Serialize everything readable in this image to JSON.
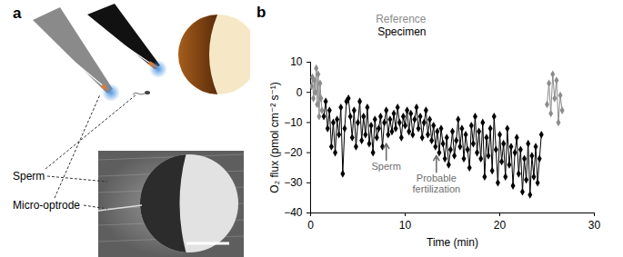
{
  "panel_a": {
    "label": "a",
    "sperm_label": "Sperm",
    "optrode_label": "Micro-optrode"
  },
  "chart_data": {
    "type": "line",
    "title": "b",
    "x_label": "Time (min)",
    "y_label": "O₂ flux (pmol cm⁻² s⁻¹)",
    "xlim": [
      0,
      30
    ],
    "xticks": [
      0,
      10,
      20,
      30
    ],
    "ylim": [
      -40,
      10
    ],
    "yticks": [
      -40,
      -30,
      -20,
      -10,
      0,
      10
    ],
    "legend": "top",
    "marker": "diamond",
    "series": [
      {
        "name": "Reference",
        "color": "#8c8c8c",
        "x": [
          0.1,
          0.2,
          0.3,
          0.4,
          0.5,
          0.6,
          0.7,
          0.8,
          0.9,
          1.0,
          1.1,
          1.2,
          1.3,
          25.0,
          25.2,
          25.4,
          25.6,
          25.8,
          26.0,
          26.2,
          26.4,
          26.6
        ],
        "values": [
          2,
          5,
          -2,
          4,
          0,
          8,
          -4,
          6,
          -8,
          3,
          -2,
          -6,
          null,
          -4,
          3,
          -7,
          6,
          -2,
          4,
          -10,
          -1,
          -6
        ]
      },
      {
        "name": "Specimen",
        "color": "#000000",
        "x": [
          1.4,
          1.6,
          1.8,
          2.0,
          2.2,
          2.4,
          2.6,
          2.8,
          3.0,
          3.2,
          3.4,
          3.6,
          3.8,
          4.0,
          4.2,
          4.4,
          4.6,
          4.8,
          5.0,
          5.2,
          5.4,
          5.6,
          5.8,
          6.0,
          6.2,
          6.4,
          6.6,
          6.8,
          7.0,
          7.2,
          7.4,
          7.6,
          7.8,
          8.0,
          8.2,
          8.4,
          8.6,
          8.8,
          9.0,
          9.2,
          9.4,
          9.6,
          9.8,
          10.0,
          10.2,
          10.4,
          10.6,
          10.8,
          11.0,
          11.2,
          11.4,
          11.6,
          11.8,
          12.0,
          12.2,
          12.4,
          12.6,
          12.8,
          13.0,
          13.2,
          13.4,
          13.6,
          13.8,
          14.0,
          14.2,
          14.4,
          14.6,
          14.8,
          15.0,
          15.2,
          15.4,
          15.6,
          15.8,
          16.0,
          16.2,
          16.4,
          16.6,
          16.8,
          17.0,
          17.2,
          17.4,
          17.6,
          17.8,
          18.0,
          18.2,
          18.4,
          18.6,
          18.8,
          19.0,
          19.2,
          19.4,
          19.6,
          19.8,
          20.0,
          20.2,
          20.4,
          20.6,
          20.8,
          21.0,
          21.2,
          21.4,
          21.6,
          21.8,
          22.0,
          22.2,
          22.4,
          22.6,
          22.8,
          23.0,
          23.2,
          23.4,
          23.6,
          23.8,
          24.0,
          24.2,
          24.4
        ],
        "values": [
          -8,
          -3,
          -12,
          -6,
          -18,
          -10,
          -20,
          -9,
          -14,
          -5,
          -27,
          -12,
          -3,
          -2,
          -8,
          -15,
          -6,
          -18,
          -10,
          -3,
          -16,
          -8,
          -14,
          -5,
          -17,
          -11,
          -20,
          -9,
          -15,
          -12,
          -8,
          -18,
          -10,
          -6,
          -14,
          -9,
          -13,
          -7,
          -12,
          -5,
          -10,
          -15,
          -8,
          -11,
          -6,
          -13,
          -7,
          -14,
          -9,
          -5,
          -12,
          -8,
          -15,
          -10,
          -6,
          -14,
          -9,
          -16,
          -11,
          -18,
          -13,
          -20,
          -12,
          -17,
          -22,
          -15,
          -24,
          -19,
          -13,
          -21,
          -16,
          -9,
          -18,
          -12,
          -22,
          -14,
          -19,
          -25,
          -11,
          -17,
          -8,
          -20,
          -13,
          -22,
          -10,
          -28,
          -15,
          -21,
          -12,
          -26,
          -8,
          -19,
          -30,
          -14,
          -23,
          -17,
          -28,
          -12,
          -24,
          -18,
          -31,
          -20,
          -15,
          -27,
          -19,
          -33,
          -22,
          -29,
          -17,
          -34,
          -21,
          -28,
          -18,
          -30,
          -22,
          -14
        ]
      }
    ],
    "annotations": [
      {
        "text": "Sperm",
        "x": 8,
        "y": -17
      },
      {
        "text": "Probable fertilization",
        "x": 13.3,
        "y": -21
      }
    ]
  }
}
